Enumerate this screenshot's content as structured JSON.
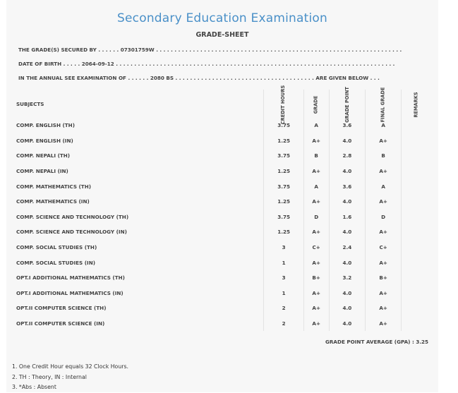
{
  "header": {
    "title": "Secondary Education Examination",
    "subtitle": "GRADE-SHEET"
  },
  "info": {
    "grades_secured_by": "THE GRADE(S) SECURED BY . . . . . . 07301759W . . . . . . . . . . . . . . . . . . . . . . . . . . . . . . . . . . . . . . . . . . . . . . . . . . . . . . . . . . . . . . . . . . .",
    "date_of_birth": "DATE OF BIRTH . . . . . 2064-09-12 . . . . . . . . . . . . . . . . . . . . . . . . . . . . . . . . . . . . . . . . . . . . . . . . . . . . . . . . . . . . . . . . . . . . . . . . . . . .",
    "annual_exam": "IN THE ANNUAL SEE EXAMINATION OF . . . . . . 2080 BS . . . . . . . . . . . . . . . . . . . . . . . . . . . . . . . . . . . . . . ARE GIVEN BELOW . . ."
  },
  "table": {
    "headers": {
      "subjects": "SUBJECTS",
      "credit_hours": "CREDIT HOURS",
      "grade": "GRADE",
      "grade_point": "GRADE POINT",
      "final_grade": "FINAL GRADE",
      "remarks": "REMARKS"
    },
    "rows": [
      {
        "subject": "COMP. ENGLISH (TH)",
        "credit": "3.75",
        "grade": "A",
        "gp": "3.6",
        "final": "A",
        "remarks": ""
      },
      {
        "subject": "COMP. ENGLISH (IN)",
        "credit": "1.25",
        "grade": "A+",
        "gp": "4.0",
        "final": "A+",
        "remarks": ""
      },
      {
        "subject": "COMP. NEPALI (TH)",
        "credit": "3.75",
        "grade": "B",
        "gp": "2.8",
        "final": "B",
        "remarks": ""
      },
      {
        "subject": "COMP. NEPALI (IN)",
        "credit": "1.25",
        "grade": "A+",
        "gp": "4.0",
        "final": "A+",
        "remarks": ""
      },
      {
        "subject": "COMP. MATHEMATICS (TH)",
        "credit": "3.75",
        "grade": "A",
        "gp": "3.6",
        "final": "A",
        "remarks": ""
      },
      {
        "subject": "COMP. MATHEMATICS (IN)",
        "credit": "1.25",
        "grade": "A+",
        "gp": "4.0",
        "final": "A+",
        "remarks": ""
      },
      {
        "subject": "COMP. SCIENCE AND TECHNOLOGY (TH)",
        "credit": "3.75",
        "grade": "D",
        "gp": "1.6",
        "final": "D",
        "remarks": ""
      },
      {
        "subject": "COMP. SCIENCE AND TECHNOLOGY (IN)",
        "credit": "1.25",
        "grade": "A+",
        "gp": "4.0",
        "final": "A+",
        "remarks": ""
      },
      {
        "subject": "COMP. SOCIAL STUDIES (TH)",
        "credit": "3",
        "grade": "C+",
        "gp": "2.4",
        "final": "C+",
        "remarks": ""
      },
      {
        "subject": "COMP. SOCIAL STUDIES (IN)",
        "credit": "1",
        "grade": "A+",
        "gp": "4.0",
        "final": "A+",
        "remarks": ""
      },
      {
        "subject": "OPT.I ADDITIONAL MATHEMATICS (TH)",
        "credit": "3",
        "grade": "B+",
        "gp": "3.2",
        "final": "B+",
        "remarks": ""
      },
      {
        "subject": "OPT.I ADDITIONAL MATHEMATICS (IN)",
        "credit": "1",
        "grade": "A+",
        "gp": "4.0",
        "final": "A+",
        "remarks": ""
      },
      {
        "subject": "OPT.II COMPUTER SCIENCE (TH)",
        "credit": "2",
        "grade": "A+",
        "gp": "4.0",
        "final": "A+",
        "remarks": ""
      },
      {
        "subject": "OPT.II COMPUTER SCIENCE (IN)",
        "credit": "2",
        "grade": "A+",
        "gp": "4.0",
        "final": "A+",
        "remarks": ""
      }
    ]
  },
  "gpa": "GRADE POINT AVERAGE (GPA) : 3.25",
  "notes": [
    "1. One Credit Hour equals 32 Clock Hours.",
    "2. TH : Theory, IN : Internal",
    "3. *Abs : Absent"
  ],
  "colors": {
    "title": "#4a90c8",
    "background": "#f7f7f7"
  }
}
